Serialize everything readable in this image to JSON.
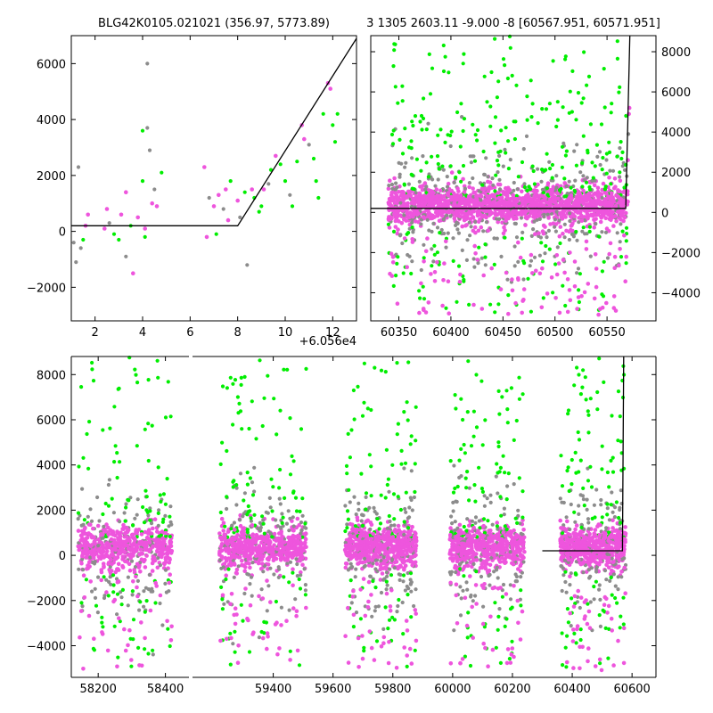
{
  "colors": {
    "grey": "#8c8c8c",
    "green": "#00ee00",
    "pink": "#ee55dd",
    "model": "#000000"
  },
  "chart_data": [
    {
      "id": "zoom",
      "type": "scatter",
      "title": "BLG42K0105.021021 (356.97, 5773.89)",
      "xlim": [
        1,
        13
      ],
      "ylim": [
        -3200,
        7000
      ],
      "xticks": [
        2,
        4,
        6,
        8,
        10,
        12
      ],
      "yticks": [
        -2000,
        0,
        2000,
        4000,
        6000
      ],
      "offset_label": "+6.056e4",
      "model": [
        [
          1,
          200
        ],
        [
          8,
          200
        ],
        [
          13,
          6900
        ]
      ],
      "points": [
        [
          1.1,
          -400,
          "grey"
        ],
        [
          1.2,
          -1100,
          "grey"
        ],
        [
          1.3,
          2300,
          "grey"
        ],
        [
          1.4,
          -600,
          "grey"
        ],
        [
          1.6,
          200,
          "pink"
        ],
        [
          1.7,
          600,
          "pink"
        ],
        [
          1.5,
          -300,
          "green"
        ],
        [
          2.4,
          100,
          "pink"
        ],
        [
          2.5,
          800,
          "pink"
        ],
        [
          2.6,
          300,
          "grey"
        ],
        [
          2.8,
          -100,
          "green"
        ],
        [
          3.0,
          -300,
          "green"
        ],
        [
          3.1,
          600,
          "pink"
        ],
        [
          3.3,
          -900,
          "grey"
        ],
        [
          3.5,
          200,
          "green"
        ],
        [
          3.6,
          -1500,
          "pink"
        ],
        [
          3.3,
          1400,
          "pink"
        ],
        [
          3.8,
          500,
          "pink"
        ],
        [
          4.0,
          1800,
          "green"
        ],
        [
          4.0,
          3600,
          "green"
        ],
        [
          4.1,
          -200,
          "green"
        ],
        [
          4.2,
          6000,
          "grey"
        ],
        [
          4.2,
          3700,
          "grey"
        ],
        [
          4.3,
          2900,
          "grey"
        ],
        [
          4.4,
          1000,
          "pink"
        ],
        [
          4.5,
          1500,
          "grey"
        ],
        [
          4.6,
          900,
          "pink"
        ],
        [
          4.8,
          2100,
          "green"
        ],
        [
          4.1,
          100,
          "pink"
        ],
        [
          6.6,
          2300,
          "pink"
        ],
        [
          6.7,
          -200,
          "pink"
        ],
        [
          6.8,
          1200,
          "grey"
        ],
        [
          7.0,
          900,
          "pink"
        ],
        [
          7.1,
          -100,
          "green"
        ],
        [
          7.2,
          1300,
          "pink"
        ],
        [
          7.4,
          800,
          "grey"
        ],
        [
          7.5,
          1500,
          "pink"
        ],
        [
          7.7,
          1800,
          "green"
        ],
        [
          7.6,
          400,
          "pink"
        ],
        [
          8.0,
          1100,
          "pink"
        ],
        [
          8.1,
          500,
          "grey"
        ],
        [
          8.3,
          1400,
          "green"
        ],
        [
          8.4,
          -1200,
          "grey"
        ],
        [
          8.6,
          1500,
          "pink"
        ],
        [
          8.7,
          1200,
          "green"
        ],
        [
          8.9,
          700,
          "green"
        ],
        [
          9.0,
          900,
          "green"
        ],
        [
          9.1,
          1500,
          "pink"
        ],
        [
          9.3,
          1700,
          "grey"
        ],
        [
          9.4,
          2200,
          "green"
        ],
        [
          9.6,
          2700,
          "pink"
        ],
        [
          9.8,
          2400,
          "green"
        ],
        [
          10.0,
          1800,
          "green"
        ],
        [
          10.2,
          1300,
          "grey"
        ],
        [
          10.3,
          900,
          "green"
        ],
        [
          10.5,
          2500,
          "green"
        ],
        [
          10.7,
          3800,
          "pink"
        ],
        [
          10.8,
          3300,
          "pink"
        ],
        [
          11.0,
          3100,
          "grey"
        ],
        [
          11.2,
          2600,
          "green"
        ],
        [
          11.3,
          1800,
          "green"
        ],
        [
          11.4,
          1200,
          "green"
        ],
        [
          11.6,
          4200,
          "green"
        ],
        [
          11.8,
          5300,
          "pink"
        ],
        [
          11.9,
          5100,
          "pink"
        ],
        [
          12.0,
          3800,
          "green"
        ],
        [
          12.1,
          3200,
          "green"
        ],
        [
          12.2,
          4200,
          "green"
        ]
      ]
    },
    {
      "id": "season",
      "type": "scatter",
      "title": "3 1305 2603.11 -9.000 -8 [60567.951, 60571.951]",
      "xlim": [
        60323,
        60597
      ],
      "ylim": [
        -5400,
        8800
      ],
      "xticks": [
        60350,
        60400,
        60450,
        60500,
        60550
      ],
      "yticks": [
        -4000,
        -2000,
        0,
        2000,
        4000,
        6000,
        8000
      ],
      "model": [
        [
          60323,
          200
        ],
        [
          60567.951,
          200
        ],
        [
          60571.951,
          8800
        ]
      ],
      "cloud": {
        "x_start": 60340,
        "x_end": 60570
      }
    },
    {
      "id": "full",
      "type": "scatter",
      "xlim": [
        58120,
        60680
      ],
      "ylim": [
        -5400,
        8800
      ],
      "xticks": [
        58200,
        58400,
        59400,
        59600,
        59800,
        60000,
        60200,
        60400,
        60600
      ],
      "yticks": [
        -4000,
        -2000,
        0,
        2000,
        4000,
        6000,
        8000
      ],
      "model": [
        [
          60300,
          200
        ],
        [
          60567.951,
          200
        ],
        [
          60571.951,
          8800
        ]
      ],
      "seasons": [
        [
          58140,
          58420
        ],
        [
          59220,
          59510
        ],
        [
          59640,
          59880
        ],
        [
          59990,
          60240
        ],
        [
          60360,
          60580
        ]
      ]
    }
  ]
}
